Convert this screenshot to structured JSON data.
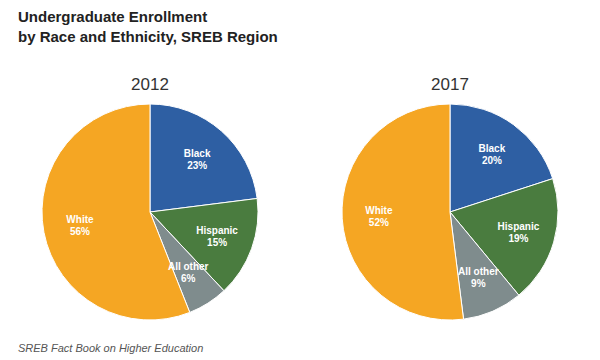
{
  "title": "Undergraduate Enrollment",
  "subtitle": "by Race and Ethnicity, SREB Region",
  "annotations": [
    "SREB Fact Book on Higher Education"
  ],
  "chart_data": [
    {
      "type": "pie",
      "title": "2012",
      "categories": [
        "Black",
        "Hispanic",
        "All other",
        "White"
      ],
      "values": [
        23,
        15,
        6,
        56
      ],
      "value_labels": [
        "23%",
        "15%",
        "6%",
        "56%"
      ],
      "colors": [
        "#2e5fa3",
        "#4a7c3f",
        "#7f8c8d",
        "#f5a623"
      ],
      "data_labels": true
    },
    {
      "type": "pie",
      "title": "2017",
      "categories": [
        "Black",
        "Hispanic",
        "All other",
        "White"
      ],
      "values": [
        20,
        19,
        9,
        52
      ],
      "value_labels": [
        "20%",
        "19%",
        "9%",
        "52%"
      ],
      "colors": [
        "#2e5fa3",
        "#4a7c3f",
        "#7f8c8d",
        "#f5a623"
      ],
      "data_labels": true
    }
  ]
}
